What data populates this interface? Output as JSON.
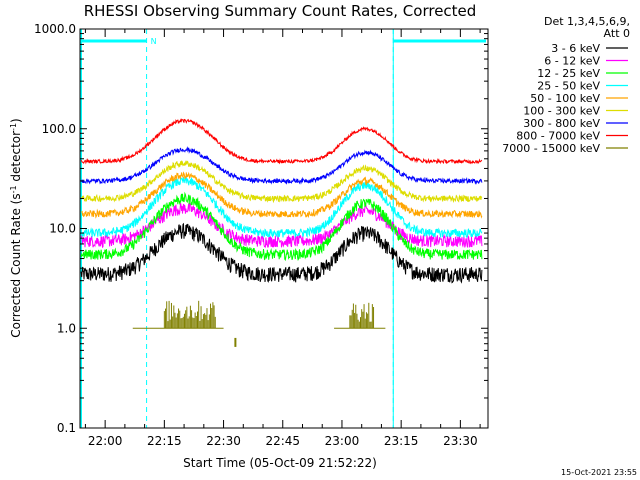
{
  "chart_data": {
    "type": "line",
    "title": "RHESSI Observing Summary Count Rates, Corrected",
    "xlabel": "Start Time (05-Oct-09 21:52:22)",
    "ylabel_main": "Corrected Count Rate (s",
    "ylabel_sup1": "-1",
    "ylabel_mid": " detector",
    "ylabel_sup2": "-1",
    "ylabel_end": ")",
    "y_scale": "log",
    "ylim": [
      0.1,
      1000
    ],
    "xlim_minutes": [
      -6.37,
      97.0
    ],
    "y_ticks": [
      {
        "value": 1000,
        "label": "1000.0"
      },
      {
        "value": 100,
        "label": "100.0"
      },
      {
        "value": 10,
        "label": "10.0"
      },
      {
        "value": 1,
        "label": "1.0"
      },
      {
        "value": 0.1,
        "label": "0.1"
      }
    ],
    "x_ticks": [
      {
        "min": 0,
        "label": "22:00"
      },
      {
        "min": 15,
        "label": "22:15"
      },
      {
        "min": 30,
        "label": "22:30"
      },
      {
        "min": 45,
        "label": "22:45"
      },
      {
        "min": 60,
        "label": "23:00"
      },
      {
        "min": 75,
        "label": "23:15"
      },
      {
        "min": 90,
        "label": "23:30"
      }
    ],
    "legend_header": [
      "Det 1,3,4,5,6,9,",
      "Att 0"
    ],
    "legend_placement": "right-outside",
    "series": [
      {
        "name": "3 - 6 keV",
        "color": "#000000",
        "base": 3.5,
        "peaks": [
          9.5,
          9.0
        ]
      },
      {
        "name": "6 - 12 keV",
        "color": "#ff00ff",
        "base": 7.5,
        "peaks": [
          16.0,
          15.0
        ]
      },
      {
        "name": "12 - 25 keV",
        "color": "#00ff00",
        "base": 5.5,
        "peaks": [
          20.0,
          18.0
        ]
      },
      {
        "name": "25 - 50 keV",
        "color": "#00ffff",
        "base": 9.0,
        "peaks": [
          30.0,
          27.0
        ]
      },
      {
        "name": "50 - 100 keV",
        "color": "#ffa500",
        "base": 14.0,
        "peaks": [
          34.0,
          30.0
        ]
      },
      {
        "name": "100 - 300 keV",
        "color": "#dddd00",
        "base": 20.0,
        "peaks": [
          45.0,
          40.0
        ]
      },
      {
        "name": "300 - 800 keV",
        "color": "#0000ff",
        "base": 30.0,
        "peaks": [
          62.0,
          58.0
        ]
      },
      {
        "name": "800 - 7000 keV",
        "color": "#ff0000",
        "base": 47.0,
        "peaks": [
          120.0,
          100.0
        ]
      },
      {
        "name": "7000 - 15000 keV",
        "color": "#808000",
        "base": 0,
        "peaks": [
          1.9,
          1.9
        ]
      }
    ],
    "peak_times_minutes": [
      20.0,
      66.0
    ],
    "night_intervals_minutes": [
      [
        -6.37,
        10.5
      ],
      [
        73.0,
        97.0
      ]
    ],
    "night_label": "N",
    "night_color": "#00ffff"
  },
  "timestamp": "15-Oct-2021 23:55"
}
